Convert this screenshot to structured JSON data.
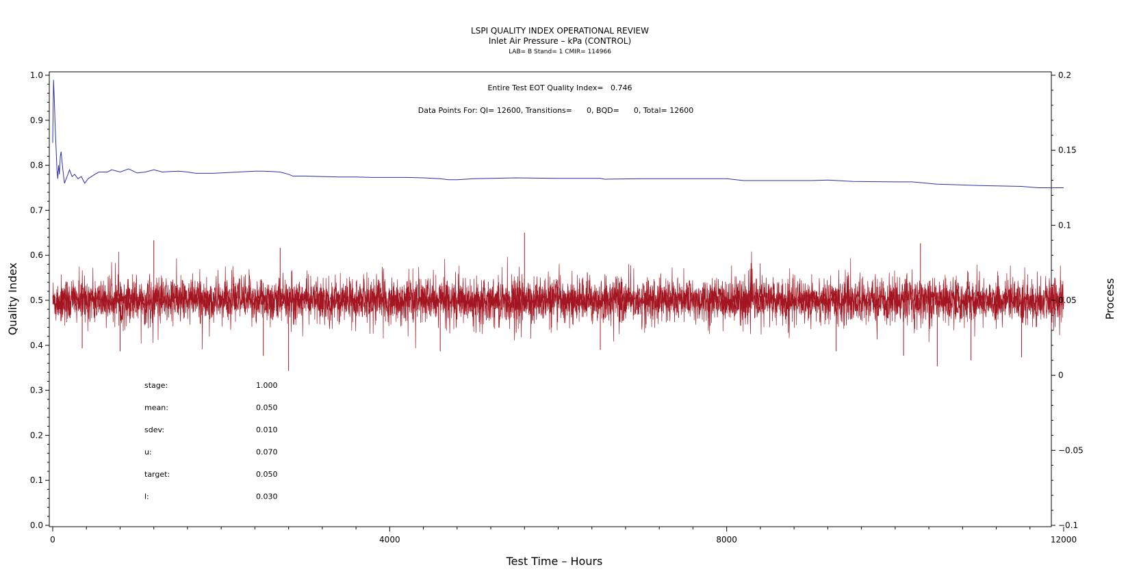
{
  "chart_data": {
    "type": "line",
    "title": "LSPI QUALITY INDEX OPERATIONAL REVIEW",
    "subtitle": "Inlet Air Pressure – kPa (CONTROL)",
    "subsubtitle": "LAB= B Stand= 1 CMIR= 114966",
    "annotation_qi": "Entire Test EOT Quality Index=   0.746",
    "annotation_points": "Data Points For: QI= 12600, Transitions=      0, BQD=      0, Total= 12600",
    "xlabel": "Test Time – Hours",
    "ylabel_left": "Quality Index",
    "ylabel_right": "Process",
    "xlim": [
      0,
      12000
    ],
    "ylim_left": [
      0.0,
      1.0
    ],
    "ylim_right": [
      -0.1,
      0.2
    ],
    "x_ticks": [
      "0",
      "4000",
      "8000",
      "12000"
    ],
    "y_left_ticks": [
      "0.0",
      "0.1",
      "0.2",
      "0.3",
      "0.4",
      "0.5",
      "0.6",
      "0.7",
      "0.8",
      "0.9",
      "1.0"
    ],
    "y_right_ticks": [
      "−0.1",
      "−0.05",
      "0",
      "0.05",
      "0.1",
      "0.15",
      "0.2"
    ],
    "stats": [
      {
        "label": "stage:",
        "value": "1.000"
      },
      {
        "label": "mean:",
        "value": "0.050"
      },
      {
        "label": "sdev:",
        "value": "0.010"
      },
      {
        "label": "u:",
        "value": "0.070"
      },
      {
        "label": "target:",
        "value": "0.050"
      },
      {
        "label": "l:",
        "value": "0.030"
      }
    ],
    "series": [
      {
        "axis": "left",
        "color": "#2b2bb0",
        "x": [
          0,
          10,
          20,
          30,
          40,
          50,
          60,
          70,
          80,
          90,
          100,
          120,
          140,
          160,
          180,
          200,
          230,
          260,
          300,
          340,
          380,
          420,
          460,
          500,
          550,
          600,
          650,
          700,
          800,
          900,
          1000,
          1100,
          1200,
          1300,
          1400,
          1500,
          1600,
          1700,
          1800,
          1900,
          2000,
          2200,
          2400,
          2500,
          2600,
          2700,
          2800,
          2850,
          3000,
          3200,
          3400,
          3600,
          3800,
          4000,
          4200,
          4400,
          4600,
          4700,
          4800,
          5000,
          5200,
          5500,
          6000,
          6500,
          6550,
          7000,
          7500,
          8000,
          8200,
          8500,
          9000,
          9200,
          9500,
          10000,
          10200,
          10500,
          11000,
          11500,
          11700,
          12000
        ],
        "y": [
          0.85,
          0.99,
          0.94,
          0.88,
          0.84,
          0.79,
          0.77,
          0.8,
          0.78,
          0.82,
          0.83,
          0.79,
          0.76,
          0.77,
          0.78,
          0.79,
          0.775,
          0.78,
          0.77,
          0.775,
          0.76,
          0.77,
          0.775,
          0.78,
          0.785,
          0.785,
          0.785,
          0.79,
          0.785,
          0.792,
          0.783,
          0.785,
          0.79,
          0.785,
          0.786,
          0.787,
          0.785,
          0.782,
          0.782,
          0.782,
          0.783,
          0.785,
          0.787,
          0.787,
          0.786,
          0.785,
          0.78,
          0.776,
          0.776,
          0.775,
          0.774,
          0.774,
          0.773,
          0.773,
          0.773,
          0.772,
          0.77,
          0.768,
          0.768,
          0.77,
          0.771,
          0.772,
          0.771,
          0.771,
          0.769,
          0.77,
          0.77,
          0.77,
          0.766,
          0.766,
          0.766,
          0.767,
          0.764,
          0.763,
          0.763,
          0.758,
          0.755,
          0.753,
          0.75,
          0.75
        ]
      },
      {
        "axis": "right",
        "color": "#a31520",
        "mean": 0.05,
        "sdev": 0.01,
        "n_points": 12600,
        "spikes": [
          {
            "x": 1200,
            "y": 0.09
          },
          {
            "x": 2700,
            "y": 0.085
          },
          {
            "x": 2800,
            "y": 0.003
          },
          {
            "x": 2500,
            "y": 0.013
          },
          {
            "x": 5600,
            "y": 0.095
          },
          {
            "x": 10300,
            "y": 0.088
          },
          {
            "x": 10500,
            "y": 0.006
          },
          {
            "x": 10900,
            "y": 0.01
          },
          {
            "x": 11500,
            "y": 0.012
          },
          {
            "x": 4600,
            "y": 0.016
          },
          {
            "x": 6500,
            "y": 0.017
          },
          {
            "x": 9300,
            "y": 0.016
          },
          {
            "x": 10100,
            "y": 0.013
          },
          {
            "x": 800,
            "y": 0.016
          },
          {
            "x": 350,
            "y": 0.018
          }
        ]
      }
    ]
  }
}
